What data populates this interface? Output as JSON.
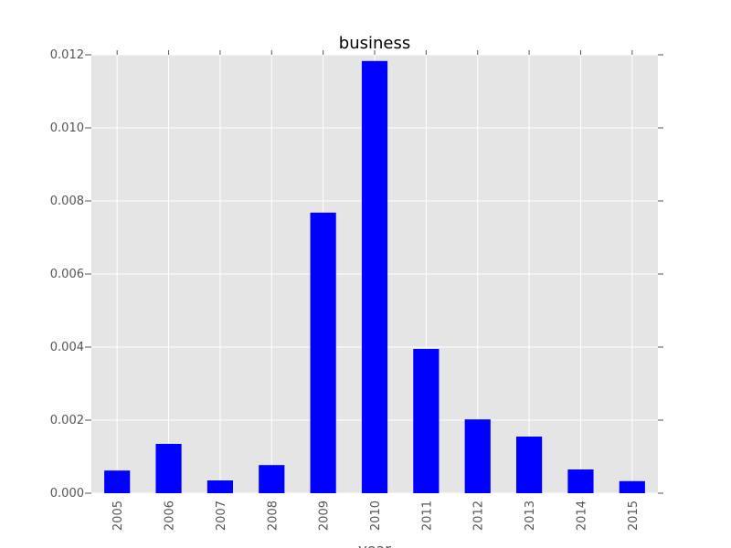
{
  "chart_data": {
    "type": "bar",
    "title": "business",
    "xlabel": "year",
    "ylabel": "",
    "categories": [
      "2005",
      "2006",
      "2007",
      "2008",
      "2009",
      "2010",
      "2011",
      "2012",
      "2013",
      "2014",
      "2015"
    ],
    "values": [
      0.00062,
      0.00135,
      0.00035,
      0.00077,
      0.00768,
      0.01183,
      0.00395,
      0.00202,
      0.00155,
      0.00065,
      0.00033
    ],
    "ylim": [
      0,
      0.012
    ],
    "yticks": [
      "0.000",
      "0.002",
      "0.004",
      "0.006",
      "0.008",
      "0.010",
      "0.012"
    ],
    "grid": true,
    "legend": "none"
  },
  "colors": {
    "bar": "#0000ff",
    "plot_background": "#e5e5e5",
    "grid": "#ffffff",
    "tick_text": "#555555"
  }
}
